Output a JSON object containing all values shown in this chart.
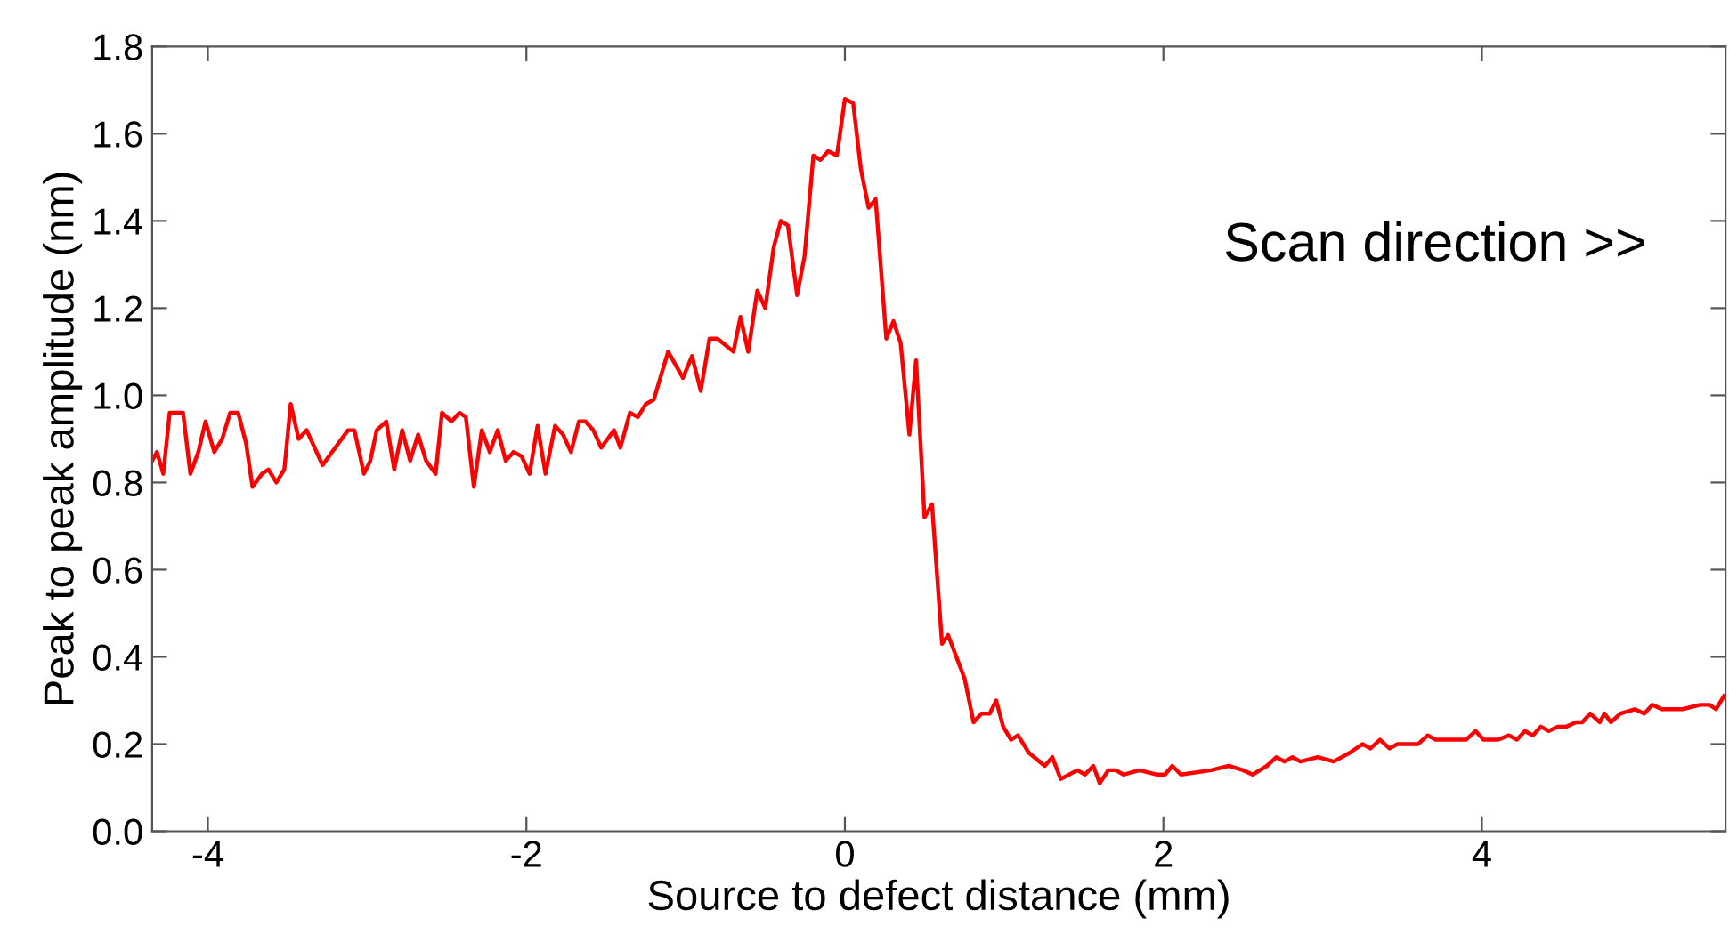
{
  "chart_data": {
    "type": "line",
    "xlabel": "Source to defect distance (mm)",
    "ylabel": "Peak to peak amplitude (nm)",
    "annotations": [
      "Scan direction >>"
    ],
    "xlim": [
      -4.35,
      5.53
    ],
    "xticks": [
      -4,
      -2,
      0,
      2,
      4
    ],
    "ylim": [
      0.0,
      1.8
    ],
    "yticks": [
      {
        "value": 0,
        "label": "0.0"
      },
      0.2,
      0.4,
      0.6,
      0.8,
      {
        "value": 1,
        "label": "1.0"
      },
      1.2,
      1.4,
      1.6,
      1.8
    ],
    "grid": false,
    "legend": false,
    "marker": "none",
    "line_style": "solid",
    "series": [
      {
        "color": "#ff0000",
        "x": [
          -4.35,
          -4.32,
          -4.28,
          -4.24,
          -4.2,
          -4.156,
          -4.11,
          -4.06,
          -4.015,
          -3.96,
          -3.91,
          -3.86,
          -3.81,
          -3.76,
          -3.72,
          -3.66,
          -3.62,
          -3.57,
          -3.52,
          -3.48,
          -3.43,
          -3.38,
          -3.28,
          -3.12,
          -3.08,
          -3.02,
          -2.98,
          -2.94,
          -2.88,
          -2.83,
          -2.78,
          -2.73,
          -2.68,
          -2.63,
          -2.57,
          -2.53,
          -2.47,
          -2.42,
          -2.38,
          -2.33,
          -2.28,
          -2.23,
          -2.18,
          -2.13,
          -2.08,
          -2.03,
          -1.98,
          -1.93,
          -1.88,
          -1.82,
          -1.77,
          -1.72,
          -1.67,
          -1.63,
          -1.58,
          -1.53,
          -1.45,
          -1.41,
          -1.35,
          -1.3,
          -1.25,
          -1.2,
          -1.11,
          -1.017,
          -0.96,
          -0.905,
          -0.85,
          -0.8,
          -0.7,
          -0.656,
          -0.607,
          -0.55,
          -0.5,
          -0.447,
          -0.402,
          -0.358,
          -0.3,
          -0.253,
          -0.198,
          -0.153,
          -0.105,
          -0.05,
          0.0,
          0.052,
          0.1,
          0.149,
          0.193,
          0.26,
          0.305,
          0.35,
          0.405,
          0.447,
          0.5,
          0.547,
          0.61,
          0.648,
          0.752,
          0.808,
          0.857,
          0.909,
          0.95,
          0.994,
          1.043,
          1.087,
          1.155,
          1.255,
          1.303,
          1.355,
          1.46,
          1.508,
          1.56,
          1.6,
          1.654,
          1.7,
          1.75,
          1.85,
          1.96,
          2.01,
          2.056,
          2.11,
          2.3,
          2.41,
          2.5,
          2.56,
          2.65,
          2.71,
          2.76,
          2.81,
          2.86,
          2.97,
          3.07,
          3.17,
          3.25,
          3.3,
          3.36,
          3.42,
          3.47,
          3.6,
          3.66,
          3.71,
          3.79,
          3.9,
          3.96,
          4.01,
          4.1,
          4.17,
          4.22,
          4.27,
          4.32,
          4.37,
          4.42,
          4.48,
          4.53,
          4.59,
          4.63,
          4.68,
          4.74,
          4.77,
          4.81,
          4.87,
          4.96,
          5.02,
          5.07,
          5.13,
          5.26,
          5.37,
          5.43,
          5.47,
          5.52
        ],
        "values": [
          0.85,
          0.87,
          0.82,
          0.96,
          0.96,
          0.96,
          0.82,
          0.87,
          0.94,
          0.87,
          0.9,
          0.96,
          0.96,
          0.89,
          0.79,
          0.82,
          0.83,
          0.8,
          0.83,
          0.98,
          0.9,
          0.92,
          0.84,
          0.92,
          0.92,
          0.82,
          0.85,
          0.92,
          0.94,
          0.83,
          0.92,
          0.85,
          0.91,
          0.85,
          0.82,
          0.96,
          0.94,
          0.96,
          0.95,
          0.79,
          0.92,
          0.87,
          0.92,
          0.85,
          0.87,
          0.86,
          0.82,
          0.93,
          0.82,
          0.93,
          0.91,
          0.87,
          0.94,
          0.94,
          0.92,
          0.88,
          0.92,
          0.88,
          0.96,
          0.95,
          0.98,
          0.99,
          1.1,
          1.04,
          1.09,
          1.01,
          1.13,
          1.13,
          1.1,
          1.18,
          1.1,
          1.24,
          1.2,
          1.34,
          1.4,
          1.39,
          1.23,
          1.32,
          1.55,
          1.54,
          1.56,
          1.55,
          1.68,
          1.67,
          1.52,
          1.43,
          1.45,
          1.13,
          1.17,
          1.12,
          0.91,
          1.08,
          0.72,
          0.75,
          0.43,
          0.45,
          0.35,
          0.25,
          0.27,
          0.27,
          0.3,
          0.24,
          0.21,
          0.22,
          0.18,
          0.15,
          0.17,
          0.12,
          0.14,
          0.13,
          0.15,
          0.11,
          0.14,
          0.14,
          0.13,
          0.14,
          0.13,
          0.13,
          0.15,
          0.13,
          0.14,
          0.15,
          0.14,
          0.13,
          0.15,
          0.17,
          0.16,
          0.17,
          0.16,
          0.17,
          0.16,
          0.18,
          0.2,
          0.19,
          0.21,
          0.19,
          0.2,
          0.2,
          0.22,
          0.21,
          0.21,
          0.21,
          0.23,
          0.21,
          0.21,
          0.22,
          0.21,
          0.23,
          0.22,
          0.24,
          0.23,
          0.24,
          0.24,
          0.25,
          0.25,
          0.27,
          0.25,
          0.27,
          0.25,
          0.27,
          0.28,
          0.27,
          0.29,
          0.28,
          0.28,
          0.29,
          0.29,
          0.28,
          0.31
        ]
      }
    ]
  }
}
